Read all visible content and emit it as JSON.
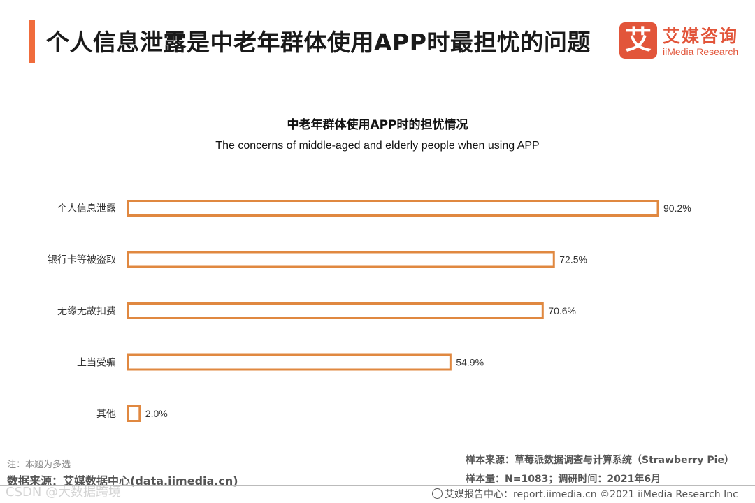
{
  "header": {
    "title": "个人信息泄露是中老年群体使用APP时最担忧的问题"
  },
  "logo": {
    "mark": "艾",
    "name_cn": "艾媒咨询",
    "name_en": "iiMedia Research"
  },
  "colors": {
    "accent": "#f06c3c",
    "bar_stroke": "#e08840",
    "logo": "#e2553a"
  },
  "chart_data": {
    "type": "bar",
    "orientation": "horizontal",
    "title": "中老年群体使用APP时的担忧情况",
    "subtitle": "The concerns of middle-aged and elderly people when using APP",
    "categories": [
      "个人信息泄露",
      "银行卡等被盗取",
      "无缘无故扣费",
      "上当受骗",
      "其他"
    ],
    "values": [
      90.2,
      72.5,
      70.6,
      54.9,
      2.0
    ],
    "value_labels": [
      "90.2%",
      "72.5%",
      "70.6%",
      "54.9%",
      "2.0%"
    ],
    "unit": "%",
    "xlim": [
      0,
      90.2
    ],
    "grid": false,
    "bar_style": "outline"
  },
  "footer": {
    "note": "注：本题为多选",
    "data_source": "数据来源：艾媒数据中心(data.iimedia.cn)",
    "sample_source": "样本来源：草莓派数据调查与计算系统（Strawberry Pie）",
    "sample_size": "样本量：N=1083；调研时间：2021年6月",
    "report_center": "艾媒报告中心：report.iimedia.cn  ©2021  iiMedia Research  Inc",
    "watermark": "CSDN @大数据跨境"
  }
}
